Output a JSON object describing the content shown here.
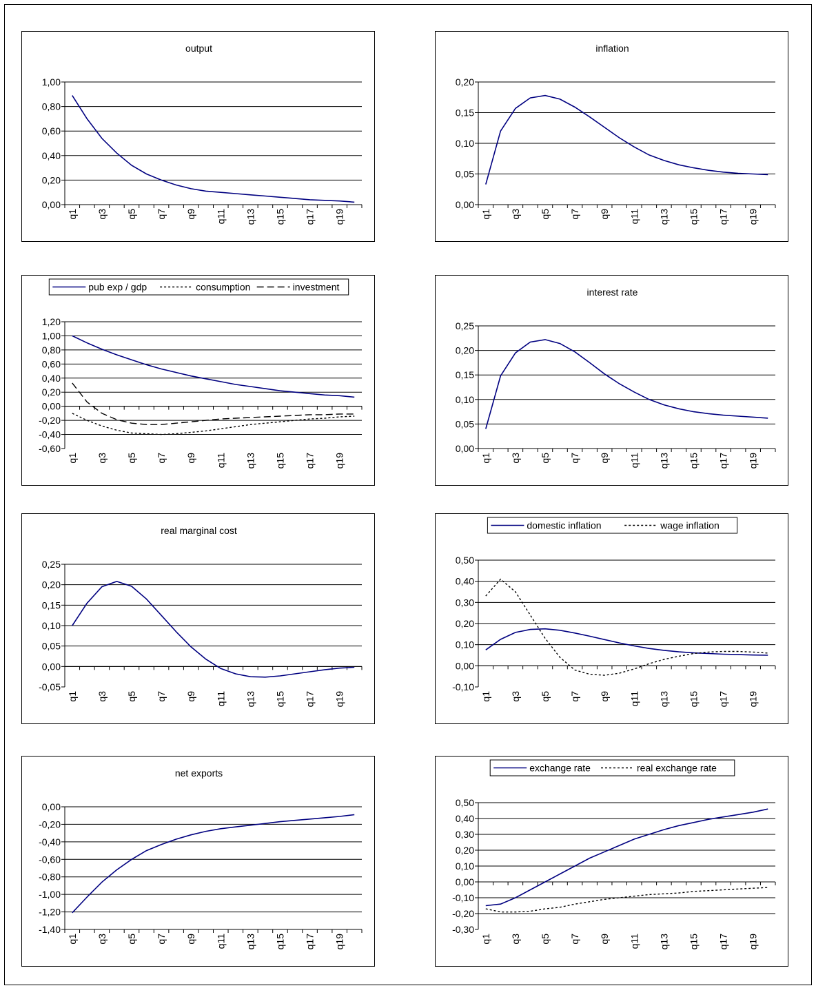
{
  "colors": {
    "series_primary": "#000080",
    "series_secondary": "#000000",
    "grid": "#000000"
  },
  "chart_data": [
    {
      "type": "line",
      "title": "output",
      "categories": [
        "q1",
        "q2",
        "q3",
        "q4",
        "q5",
        "q6",
        "q7",
        "q8",
        "q9",
        "q10",
        "q11",
        "q12",
        "q13",
        "q14",
        "q15",
        "q16",
        "q17",
        "q18",
        "q19",
        "q20"
      ],
      "tick_labels": [
        "q1",
        "q3",
        "q5",
        "q7",
        "q9",
        "q11",
        "q13",
        "q15",
        "q17",
        "q19"
      ],
      "y_ticks": [
        "0,00",
        "0,20",
        "0,40",
        "0,60",
        "0,80",
        "1,00"
      ],
      "ylim": [
        0,
        1.0
      ],
      "grid": true,
      "legend": "none",
      "series": [
        {
          "style": "solid",
          "values": [
            0.89,
            0.7,
            0.54,
            0.42,
            0.32,
            0.25,
            0.2,
            0.16,
            0.13,
            0.11,
            0.1,
            0.09,
            0.08,
            0.07,
            0.06,
            0.05,
            0.04,
            0.035,
            0.03,
            0.02
          ]
        }
      ]
    },
    {
      "type": "line",
      "title": "inflation",
      "categories": [
        "q1",
        "q2",
        "q3",
        "q4",
        "q5",
        "q6",
        "q7",
        "q8",
        "q9",
        "q10",
        "q11",
        "q12",
        "q13",
        "q14",
        "q15",
        "q16",
        "q17",
        "q18",
        "q19",
        "q20"
      ],
      "tick_labels": [
        "q1",
        "q3",
        "q5",
        "q7",
        "q9",
        "q11",
        "q13",
        "q15",
        "q17",
        "q19"
      ],
      "y_ticks": [
        "0,00",
        "0,05",
        "0,10",
        "0,15",
        "0,20"
      ],
      "ylim": [
        0,
        0.2
      ],
      "grid": true,
      "legend": "none",
      "series": [
        {
          "style": "solid",
          "values": [
            0.033,
            0.12,
            0.157,
            0.174,
            0.178,
            0.172,
            0.159,
            0.143,
            0.126,
            0.109,
            0.094,
            0.081,
            0.072,
            0.065,
            0.06,
            0.056,
            0.053,
            0.051,
            0.05,
            0.049
          ]
        }
      ]
    },
    {
      "type": "line",
      "title": "",
      "categories": [
        "q1",
        "q2",
        "q3",
        "q4",
        "q5",
        "q6",
        "q7",
        "q8",
        "q9",
        "q10",
        "q11",
        "q12",
        "q13",
        "q14",
        "q15",
        "q16",
        "q17",
        "q18",
        "q19",
        "q20"
      ],
      "tick_labels": [
        "q1",
        "q3",
        "q5",
        "q7",
        "q9",
        "q11",
        "q13",
        "q15",
        "q17",
        "q19"
      ],
      "y_ticks": [
        "-0,60",
        "-0,40",
        "-0,20",
        "0,00",
        "0,20",
        "0,40",
        "0,60",
        "0,80",
        "1,00",
        "1,20"
      ],
      "ylim": [
        -0.6,
        1.2
      ],
      "grid": true,
      "legend": "top",
      "series": [
        {
          "name": "pub exp / gdp",
          "style": "solid",
          "values": [
            1.0,
            0.9,
            0.81,
            0.73,
            0.66,
            0.59,
            0.53,
            0.48,
            0.43,
            0.39,
            0.35,
            0.31,
            0.28,
            0.25,
            0.22,
            0.2,
            0.18,
            0.16,
            0.15,
            0.13
          ]
        },
        {
          "name": "consumption",
          "style": "dotted",
          "values": [
            -0.1,
            -0.2,
            -0.28,
            -0.34,
            -0.38,
            -0.39,
            -0.4,
            -0.39,
            -0.37,
            -0.35,
            -0.32,
            -0.29,
            -0.26,
            -0.24,
            -0.22,
            -0.2,
            -0.18,
            -0.17,
            -0.15,
            -0.14
          ]
        },
        {
          "name": "investment",
          "style": "dashed",
          "values": [
            0.33,
            0.06,
            -0.1,
            -0.19,
            -0.24,
            -0.26,
            -0.26,
            -0.24,
            -0.22,
            -0.2,
            -0.18,
            -0.17,
            -0.16,
            -0.15,
            -0.14,
            -0.13,
            -0.12,
            -0.12,
            -0.11,
            -0.11
          ]
        }
      ]
    },
    {
      "type": "line",
      "title": "interest rate",
      "categories": [
        "q1",
        "q2",
        "q3",
        "q4",
        "q5",
        "q6",
        "q7",
        "q8",
        "q9",
        "q10",
        "q11",
        "q12",
        "q13",
        "q14",
        "q15",
        "q16",
        "q17",
        "q18",
        "q19",
        "q20"
      ],
      "tick_labels": [
        "q1",
        "q3",
        "q5",
        "q7",
        "q9",
        "q11",
        "q13",
        "q15",
        "q17",
        "q19"
      ],
      "y_ticks": [
        "0,00",
        "0,05",
        "0,10",
        "0,15",
        "0,20",
        "0,25"
      ],
      "ylim": [
        0,
        0.25
      ],
      "grid": true,
      "legend": "none",
      "series": [
        {
          "style": "solid",
          "values": [
            0.04,
            0.148,
            0.195,
            0.217,
            0.222,
            0.214,
            0.197,
            0.175,
            0.152,
            0.132,
            0.115,
            0.1,
            0.089,
            0.081,
            0.075,
            0.071,
            0.068,
            0.066,
            0.064,
            0.062
          ]
        }
      ]
    },
    {
      "type": "line",
      "title": "real marginal cost",
      "categories": [
        "q1",
        "q2",
        "q3",
        "q4",
        "q5",
        "q6",
        "q7",
        "q8",
        "q9",
        "q10",
        "q11",
        "q12",
        "q13",
        "q14",
        "q15",
        "q16",
        "q17",
        "q18",
        "q19",
        "q20"
      ],
      "tick_labels": [
        "q1",
        "q3",
        "q5",
        "q7",
        "q9",
        "q11",
        "q13",
        "q15",
        "q17",
        "q19"
      ],
      "y_ticks": [
        "-0,05",
        "0,00",
        "0,05",
        "0,10",
        "0,15",
        "0,20",
        "0,25"
      ],
      "ylim": [
        -0.05,
        0.25
      ],
      "grid": true,
      "legend": "none",
      "series": [
        {
          "style": "solid",
          "values": [
            0.1,
            0.155,
            0.195,
            0.208,
            0.196,
            0.165,
            0.125,
            0.085,
            0.048,
            0.018,
            -0.005,
            -0.018,
            -0.025,
            -0.026,
            -0.023,
            -0.018,
            -0.013,
            -0.008,
            -0.004,
            -0.002
          ]
        }
      ]
    },
    {
      "type": "line",
      "title": "",
      "categories": [
        "q1",
        "q2",
        "q3",
        "q4",
        "q5",
        "q6",
        "q7",
        "q8",
        "q9",
        "q10",
        "q11",
        "q12",
        "q13",
        "q14",
        "q15",
        "q16",
        "q17",
        "q18",
        "q19",
        "q20"
      ],
      "tick_labels": [
        "q1",
        "q3",
        "q5",
        "q7",
        "q9",
        "q11",
        "q13",
        "q15",
        "q17",
        "q19"
      ],
      "y_ticks": [
        "-0,10",
        "0,00",
        "0,10",
        "0,20",
        "0,30",
        "0,40",
        "0,50"
      ],
      "ylim": [
        -0.1,
        0.5
      ],
      "grid": true,
      "legend": "top",
      "series": [
        {
          "name": "domestic inflation",
          "style": "solid",
          "values": [
            0.075,
            0.125,
            0.158,
            0.172,
            0.175,
            0.168,
            0.155,
            0.14,
            0.124,
            0.108,
            0.094,
            0.082,
            0.073,
            0.066,
            0.061,
            0.058,
            0.055,
            0.053,
            0.051,
            0.05
          ]
        },
        {
          "name": "wage inflation",
          "style": "dotted",
          "values": [
            0.33,
            0.41,
            0.35,
            0.24,
            0.13,
            0.04,
            -0.02,
            -0.04,
            -0.045,
            -0.035,
            -0.015,
            0.01,
            0.03,
            0.045,
            0.058,
            0.065,
            0.068,
            0.068,
            0.065,
            0.06
          ]
        }
      ]
    },
    {
      "type": "line",
      "title": "net exports",
      "categories": [
        "q1",
        "q2",
        "q3",
        "q4",
        "q5",
        "q6",
        "q7",
        "q8",
        "q9",
        "q10",
        "q11",
        "q12",
        "q13",
        "q14",
        "q15",
        "q16",
        "q17",
        "q18",
        "q19",
        "q20"
      ],
      "tick_labels": [
        "q1",
        "q3",
        "q5",
        "q7",
        "q9",
        "q11",
        "q13",
        "q15",
        "q17",
        "q19"
      ],
      "y_ticks": [
        "-1,40",
        "-1,20",
        "-1,00",
        "-0,80",
        "-0,60",
        "-0,40",
        "-0,20",
        "0,00"
      ],
      "ylim": [
        -1.4,
        0.0
      ],
      "grid": true,
      "legend": "none",
      "series": [
        {
          "style": "solid",
          "values": [
            -1.21,
            -1.03,
            -0.86,
            -0.72,
            -0.6,
            -0.5,
            -0.43,
            -0.37,
            -0.32,
            -0.28,
            -0.25,
            -0.23,
            -0.21,
            -0.19,
            -0.17,
            -0.155,
            -0.14,
            -0.125,
            -0.11,
            -0.09
          ]
        }
      ]
    },
    {
      "type": "line",
      "title": "",
      "categories": [
        "q1",
        "q2",
        "q3",
        "q4",
        "q5",
        "q6",
        "q7",
        "q8",
        "q9",
        "q10",
        "q11",
        "q12",
        "q13",
        "q14",
        "q15",
        "q16",
        "q17",
        "q18",
        "q19",
        "q20"
      ],
      "tick_labels": [
        "q1",
        "q3",
        "q5",
        "q7",
        "q9",
        "q11",
        "q13",
        "q15",
        "q17",
        "q19"
      ],
      "y_ticks": [
        "-0,30",
        "-0,20",
        "-0,10",
        "0,00",
        "0,10",
        "0,20",
        "0,30",
        "0,40",
        "0,50"
      ],
      "ylim": [
        -0.3,
        0.5
      ],
      "grid": true,
      "legend": "top",
      "series": [
        {
          "name": "exchange rate",
          "style": "solid",
          "values": [
            -0.15,
            -0.14,
            -0.1,
            -0.05,
            0.0,
            0.05,
            0.1,
            0.15,
            0.19,
            0.23,
            0.27,
            0.3,
            0.33,
            0.355,
            0.375,
            0.395,
            0.41,
            0.425,
            0.44,
            0.46
          ]
        },
        {
          "name": "real exchange rate",
          "style": "dotted",
          "values": [
            -0.17,
            -0.19,
            -0.19,
            -0.185,
            -0.17,
            -0.16,
            -0.14,
            -0.125,
            -0.11,
            -0.1,
            -0.09,
            -0.08,
            -0.075,
            -0.07,
            -0.06,
            -0.055,
            -0.05,
            -0.045,
            -0.04,
            -0.035
          ]
        }
      ]
    }
  ]
}
